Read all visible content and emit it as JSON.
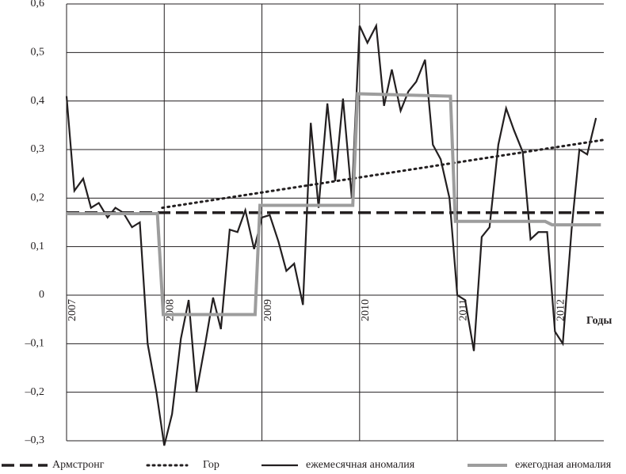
{
  "chart_data": {
    "type": "line",
    "x_label": "Годы",
    "xlim": [
      2007,
      2012.5
    ],
    "xticks": [
      2007,
      2008,
      2009,
      2010,
      2011,
      2012
    ],
    "ylim": [
      -0.3,
      0.6
    ],
    "yticks": [
      {
        "value": -0.3,
        "label": "–0,3"
      },
      {
        "value": -0.2,
        "label": "–0,2"
      },
      {
        "value": -0.1,
        "label": "–0,1"
      },
      0,
      {
        "value": 0.1,
        "label": "0,1"
      },
      {
        "value": 0.2,
        "label": "0,2"
      },
      {
        "value": 0.3,
        "label": "0,3"
      },
      {
        "value": 0.4,
        "label": "0,4"
      },
      {
        "value": 0.5,
        "label": "0,5"
      },
      {
        "value": 0.6,
        "label": "0,6"
      }
    ],
    "grid": true,
    "series": [
      {
        "name": "Армстронг",
        "color": "#231f20",
        "style": "dashed",
        "width": 3.5,
        "x": [
          2007,
          2012.5
        ],
        "values": [
          0.17,
          0.17
        ]
      },
      {
        "name": "Гор",
        "color": "#231f20",
        "style": "dotted",
        "width": 3,
        "x": [
          2007.98,
          2012.5
        ],
        "values": [
          0.18,
          0.32
        ]
      },
      {
        "name": "ежемесячная аномалия",
        "color": "#231f20",
        "style": "solid",
        "width": 2.2,
        "x": [
          2007,
          2007.08,
          2007.17,
          2007.25,
          2007.33,
          2007.42,
          2007.5,
          2007.58,
          2007.67,
          2007.75,
          2007.83,
          2007.92,
          2008,
          2008.08,
          2008.17,
          2008.25,
          2008.33,
          2008.42,
          2008.5,
          2008.58,
          2008.67,
          2008.75,
          2008.83,
          2008.92,
          2009,
          2009.08,
          2009.17,
          2009.25,
          2009.33,
          2009.42,
          2009.5,
          2009.58,
          2009.67,
          2009.75,
          2009.83,
          2009.92,
          2010,
          2010.08,
          2010.17,
          2010.25,
          2010.33,
          2010.42,
          2010.5,
          2010.58,
          2010.67,
          2010.75,
          2010.83,
          2010.92,
          2011,
          2011.08,
          2011.17,
          2011.25,
          2011.33,
          2011.42,
          2011.5,
          2011.58,
          2011.67,
          2011.75,
          2011.83,
          2011.92,
          2012,
          2012.08,
          2012.17,
          2012.25,
          2012.33,
          2012.42
        ],
        "values": [
          0.41,
          0.215,
          0.24,
          0.18,
          0.19,
          0.16,
          0.18,
          0.17,
          0.14,
          0.15,
          -0.1,
          -0.2,
          -0.31,
          -0.245,
          -0.09,
          -0.01,
          -0.2,
          -0.1,
          -0.005,
          -0.07,
          0.135,
          0.13,
          0.175,
          0.095,
          0.16,
          0.165,
          0.11,
          0.05,
          0.065,
          -0.02,
          0.355,
          0.18,
          0.395,
          0.235,
          0.405,
          0.2,
          0.555,
          0.52,
          0.555,
          0.39,
          0.465,
          0.38,
          0.42,
          0.44,
          0.485,
          0.31,
          0.28,
          0.2,
          0.0,
          -0.01,
          -0.115,
          0.12,
          0.14,
          0.31,
          0.385,
          0.34,
          0.295,
          0.115,
          0.13,
          0.13,
          -0.075,
          -0.1,
          0.135,
          0.3,
          0.29,
          0.365
        ]
      },
      {
        "name": "ежегодная аномалия",
        "color": "#9d9d9d",
        "style": "solid",
        "width": 4,
        "x": [
          2007,
          2007.93,
          2007.99,
          2008.93,
          2008.98,
          2009.93,
          2009.98,
          2010.93,
          2010.98,
          2011.9,
          2011.97,
          2012.47
        ],
        "values": [
          0.168,
          0.168,
          -0.04,
          -0.04,
          0.185,
          0.185,
          0.415,
          0.41,
          0.152,
          0.152,
          0.145,
          0.145
        ]
      }
    ]
  }
}
